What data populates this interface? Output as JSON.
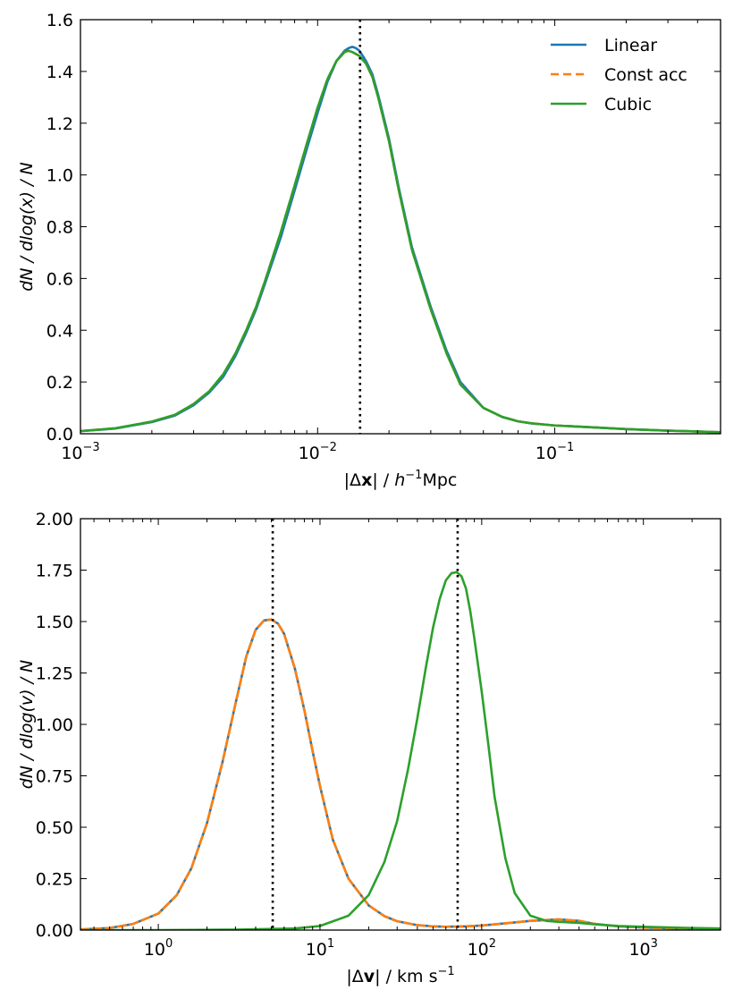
{
  "colors": {
    "linear": "#1f77b4",
    "const_acc": "#ff7f0e",
    "cubic": "#2ca02c",
    "reference": "#000000"
  },
  "chart_data": [
    {
      "id": "position",
      "type": "line",
      "xscale": "log",
      "xlim": [
        0.001,
        0.5
      ],
      "ylim": [
        0,
        1.6
      ],
      "xlabel_parts": {
        "open": "|Δ",
        "vec": "x",
        "close": "| / ",
        "h": "h",
        "exp": "−1",
        "unit": "Mpc"
      },
      "ylabel": "dN / dlog(x) / N",
      "xticks": [
        {
          "value": 0.001,
          "base": "10",
          "exp": "−3"
        },
        {
          "value": 0.01,
          "base": "10",
          "exp": "−2"
        },
        {
          "value": 0.1,
          "base": "10",
          "exp": "−1"
        }
      ],
      "yticks": [
        {
          "value": 0.0,
          "label": "0.0"
        },
        {
          "value": 0.2,
          "label": "0.2"
        },
        {
          "value": 0.4,
          "label": "0.4"
        },
        {
          "value": 0.6,
          "label": "0.6"
        },
        {
          "value": 0.8,
          "label": "0.8"
        },
        {
          "value": 1.0,
          "label": "1.0"
        },
        {
          "value": 1.2,
          "label": "1.2"
        },
        {
          "value": 1.4,
          "label": "1.4"
        },
        {
          "value": 1.6,
          "label": "1.6"
        }
      ],
      "reference_lines": [
        0.0151
      ],
      "legend": {
        "position": "top-right",
        "entries": [
          "Linear",
          "Const acc",
          "Cubic"
        ]
      },
      "series": [
        {
          "name": "Linear",
          "color_key": "linear",
          "style": "solid",
          "x": [
            0.001,
            0.0014,
            0.002,
            0.0025,
            0.003,
            0.0035,
            0.004,
            0.0045,
            0.005,
            0.0055,
            0.006,
            0.007,
            0.008,
            0.009,
            0.01,
            0.011,
            0.012,
            0.013,
            0.0135,
            0.014,
            0.0145,
            0.015,
            0.0155,
            0.016,
            0.017,
            0.018,
            0.02,
            0.022,
            0.025,
            0.03,
            0.035,
            0.04,
            0.05,
            0.06,
            0.07,
            0.08,
            0.1,
            0.15,
            0.2,
            0.3,
            0.5
          ],
          "y": [
            0.01,
            0.02,
            0.045,
            0.07,
            0.11,
            0.16,
            0.22,
            0.3,
            0.39,
            0.48,
            0.58,
            0.76,
            0.94,
            1.1,
            1.24,
            1.36,
            1.44,
            1.48,
            1.49,
            1.495,
            1.49,
            1.48,
            1.46,
            1.44,
            1.39,
            1.31,
            1.14,
            0.95,
            0.72,
            0.49,
            0.32,
            0.2,
            0.1,
            0.065,
            0.048,
            0.04,
            0.032,
            0.024,
            0.018,
            0.012,
            0.006
          ]
        },
        {
          "name": "Const acc",
          "color_key": "const_acc",
          "style": "dashed",
          "x": [
            0.001,
            0.0014,
            0.002,
            0.0025,
            0.003,
            0.0035,
            0.004,
            0.0045,
            0.005,
            0.0055,
            0.006,
            0.007,
            0.008,
            0.009,
            0.01,
            0.011,
            0.012,
            0.013,
            0.0135,
            0.014,
            0.015,
            0.016,
            0.017,
            0.018,
            0.02,
            0.022,
            0.025,
            0.03,
            0.035,
            0.04,
            0.05,
            0.06,
            0.07,
            0.08,
            0.1,
            0.15,
            0.2,
            0.3,
            0.5
          ],
          "y": [
            0.01,
            0.021,
            0.047,
            0.073,
            0.115,
            0.165,
            0.23,
            0.31,
            0.4,
            0.49,
            0.59,
            0.78,
            0.96,
            1.12,
            1.26,
            1.37,
            1.44,
            1.475,
            1.48,
            1.475,
            1.46,
            1.43,
            1.38,
            1.3,
            1.13,
            0.94,
            0.71,
            0.48,
            0.31,
            0.19,
            0.1,
            0.065,
            0.048,
            0.04,
            0.032,
            0.024,
            0.018,
            0.012,
            0.006
          ]
        },
        {
          "name": "Cubic",
          "color_key": "cubic",
          "style": "solid",
          "x": [
            0.001,
            0.0014,
            0.002,
            0.0025,
            0.003,
            0.0035,
            0.004,
            0.0045,
            0.005,
            0.0055,
            0.006,
            0.007,
            0.008,
            0.009,
            0.01,
            0.011,
            0.012,
            0.013,
            0.0135,
            0.014,
            0.015,
            0.016,
            0.017,
            0.018,
            0.02,
            0.022,
            0.025,
            0.03,
            0.035,
            0.04,
            0.05,
            0.06,
            0.07,
            0.08,
            0.1,
            0.15,
            0.2,
            0.3,
            0.5
          ],
          "y": [
            0.01,
            0.021,
            0.047,
            0.073,
            0.115,
            0.165,
            0.23,
            0.31,
            0.4,
            0.49,
            0.59,
            0.78,
            0.96,
            1.12,
            1.26,
            1.37,
            1.44,
            1.475,
            1.48,
            1.475,
            1.46,
            1.43,
            1.38,
            1.3,
            1.13,
            0.94,
            0.71,
            0.48,
            0.31,
            0.19,
            0.1,
            0.065,
            0.048,
            0.04,
            0.032,
            0.024,
            0.018,
            0.012,
            0.006
          ]
        }
      ]
    },
    {
      "id": "velocity",
      "type": "line",
      "xscale": "log",
      "xlim": [
        0.33,
        3000
      ],
      "ylim": [
        0,
        2.0
      ],
      "xlabel_parts": {
        "open": "|Δ",
        "vec": "v",
        "close": "| / ",
        "unit": "km s",
        "exp": "−1"
      },
      "ylabel": "dN / dlog(v) / N",
      "xticks": [
        {
          "value": 1,
          "base": "10",
          "exp": "0"
        },
        {
          "value": 10,
          "base": "10",
          "exp": "1"
        },
        {
          "value": 100,
          "base": "10",
          "exp": "2"
        },
        {
          "value": 1000,
          "base": "10",
          "exp": "3"
        }
      ],
      "yticks": [
        {
          "value": 0.0,
          "label": "0.00"
        },
        {
          "value": 0.25,
          "label": "0.25"
        },
        {
          "value": 0.5,
          "label": "0.50"
        },
        {
          "value": 0.75,
          "label": "0.75"
        },
        {
          "value": 1.0,
          "label": "1.00"
        },
        {
          "value": 1.25,
          "label": "1.25"
        },
        {
          "value": 1.5,
          "label": "1.50"
        },
        {
          "value": 1.75,
          "label": "1.75"
        },
        {
          "value": 2.0,
          "label": "2.00"
        }
      ],
      "reference_lines": [
        5.1,
        71
      ],
      "series": [
        {
          "name": "Linear",
          "color_key": "linear",
          "style": "solid",
          "x": [
            0.33,
            0.5,
            0.7,
            1.0,
            1.3,
            1.6,
            2.0,
            2.5,
            3.0,
            3.5,
            4.0,
            4.5,
            5.0,
            5.5,
            6.0,
            7.0,
            8.0,
            9.0,
            10,
            12,
            15,
            20,
            25,
            30,
            40,
            50,
            60,
            80,
            100,
            150,
            200,
            300,
            400,
            500,
            700,
            1000,
            2000,
            3000
          ],
          "y": [
            0.003,
            0.01,
            0.03,
            0.08,
            0.17,
            0.3,
            0.52,
            0.82,
            1.1,
            1.33,
            1.46,
            1.505,
            1.51,
            1.49,
            1.44,
            1.27,
            1.07,
            0.87,
            0.7,
            0.44,
            0.25,
            0.12,
            0.068,
            0.043,
            0.024,
            0.018,
            0.016,
            0.018,
            0.022,
            0.035,
            0.045,
            0.052,
            0.045,
            0.03,
            0.018,
            0.012,
            0.006,
            0.004
          ]
        },
        {
          "name": "Const acc",
          "color_key": "const_acc",
          "style": "dashed",
          "x": [
            0.33,
            0.5,
            0.7,
            1.0,
            1.3,
            1.6,
            2.0,
            2.5,
            3.0,
            3.5,
            4.0,
            4.5,
            5.0,
            5.5,
            6.0,
            7.0,
            8.0,
            9.0,
            10,
            12,
            15,
            20,
            25,
            30,
            40,
            50,
            60,
            80,
            100,
            150,
            200,
            300,
            400,
            500,
            700,
            1000,
            2000,
            3000
          ],
          "y": [
            0.003,
            0.01,
            0.03,
            0.08,
            0.17,
            0.3,
            0.52,
            0.82,
            1.1,
            1.33,
            1.46,
            1.505,
            1.51,
            1.49,
            1.44,
            1.27,
            1.07,
            0.87,
            0.7,
            0.44,
            0.25,
            0.12,
            0.068,
            0.043,
            0.024,
            0.018,
            0.016,
            0.018,
            0.022,
            0.035,
            0.045,
            0.052,
            0.045,
            0.03,
            0.018,
            0.012,
            0.006,
            0.004
          ]
        },
        {
          "name": "Cubic",
          "color_key": "cubic",
          "style": "solid",
          "x": [
            0.33,
            1,
            3,
            7,
            10,
            15,
            20,
            25,
            30,
            35,
            40,
            45,
            50,
            55,
            60,
            65,
            70,
            75,
            80,
            85,
            90,
            100,
            110,
            120,
            140,
            160,
            200,
            250,
            300,
            400,
            500,
            700,
            1000,
            2000,
            3000
          ],
          "y": [
            0.0,
            0.0,
            0.002,
            0.008,
            0.02,
            0.07,
            0.17,
            0.33,
            0.53,
            0.78,
            1.03,
            1.27,
            1.47,
            1.61,
            1.7,
            1.735,
            1.74,
            1.72,
            1.66,
            1.55,
            1.42,
            1.16,
            0.9,
            0.65,
            0.35,
            0.18,
            0.07,
            0.045,
            0.04,
            0.035,
            0.028,
            0.02,
            0.016,
            0.01,
            0.008
          ]
        }
      ]
    }
  ]
}
